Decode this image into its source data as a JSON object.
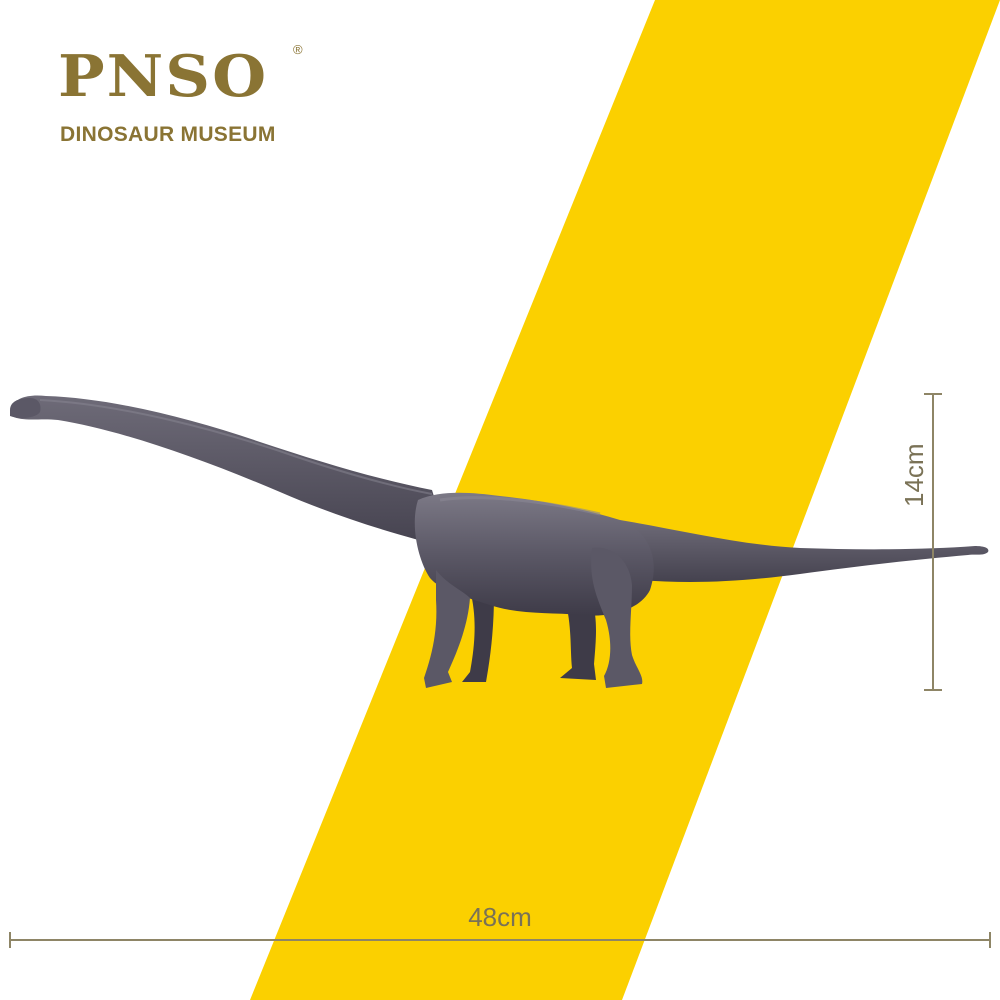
{
  "brand": {
    "name": "PNSO",
    "registered_mark": "®",
    "subtitle": "DINOSAUR MUSEUM"
  },
  "dimensions": {
    "height_label": "14cm",
    "length_label": "48cm"
  },
  "colors": {
    "background": "#ffffff",
    "stripe": "#FBD000",
    "brand": "#8A7434",
    "dimension_line": "#8E8566",
    "dimension_text": "#7A7256",
    "dinosaur_body": "#5B5866",
    "dinosaur_shadow": "#3E3B48",
    "dinosaur_highlight": "#7C7986"
  },
  "figure": {
    "subject": "sauropod-dinosaur-model"
  }
}
